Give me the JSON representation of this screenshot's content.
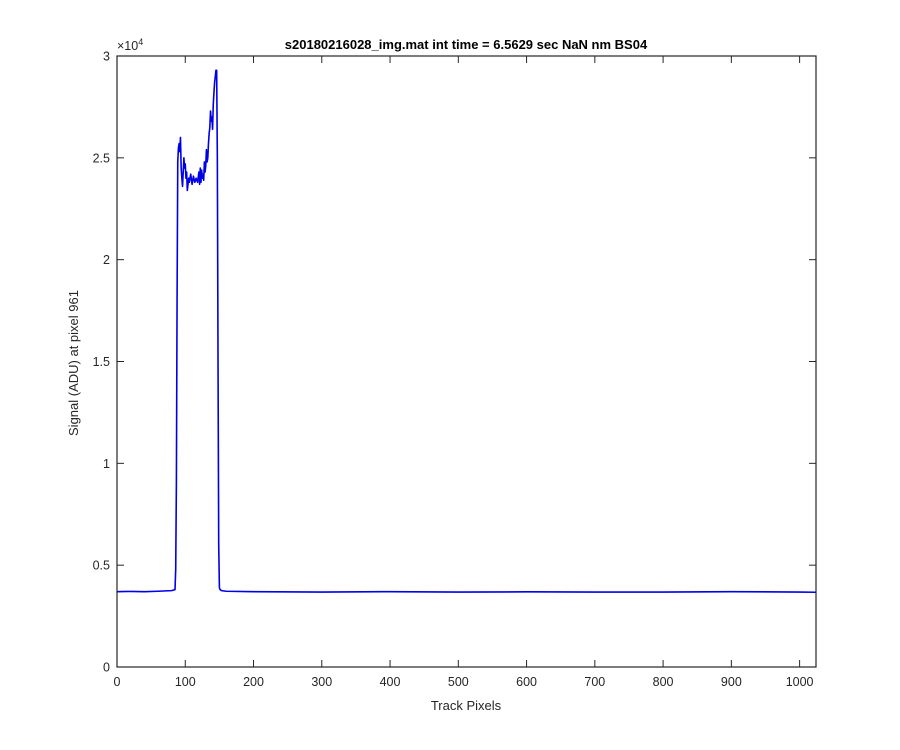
{
  "chart_data": {
    "type": "line",
    "title": "s20180216028_img.mat int time = 6.5629 sec  NaN nm BS04",
    "xlabel": "Track Pixels",
    "ylabel": "Signal (ADU) at pixel 961",
    "xlim": [
      0,
      1024
    ],
    "ylim": [
      0,
      30000
    ],
    "xticks": [
      0,
      100,
      200,
      300,
      400,
      500,
      600,
      700,
      800,
      900,
      1000
    ],
    "yticks": [
      0,
      5000,
      10000,
      15000,
      20000,
      25000,
      30000
    ],
    "yticklabels": [
      "0",
      "0.5",
      "1",
      "1.5",
      "2",
      "2.5",
      "3"
    ],
    "y_exponent_base": "×10",
    "y_exponent_power": "4",
    "grid": false,
    "series": [
      {
        "color": "#0000e6",
        "x": [
          0,
          20,
          40,
          60,
          80,
          85,
          86,
          87,
          88,
          89,
          90,
          91,
          92,
          93,
          94,
          95,
          96,
          97,
          98,
          99,
          100,
          101,
          102,
          103,
          104,
          105,
          106,
          108,
          110,
          112,
          114,
          116,
          118,
          120,
          121,
          122,
          123,
          124,
          125,
          126,
          127,
          128,
          129,
          130,
          131,
          132,
          133,
          134,
          135,
          136,
          137,
          138,
          139,
          140,
          141,
          142,
          143,
          144,
          145,
          146,
          147,
          148,
          149,
          150,
          151,
          152,
          153,
          160,
          200,
          300,
          400,
          500,
          600,
          700,
          800,
          900,
          1000,
          1024
        ],
        "y": [
          3700,
          3710,
          3700,
          3720,
          3750,
          3800,
          4800,
          9000,
          18000,
          24800,
          25500,
          25700,
          25300,
          26000,
          24500,
          24000,
          23600,
          24300,
          25000,
          24500,
          24700,
          24000,
          24300,
          23400,
          23700,
          24000,
          23800,
          24200,
          23700,
          24100,
          23800,
          24000,
          23800,
          24300,
          23700,
          24500,
          23800,
          24400,
          24000,
          24200,
          23900,
          24800,
          24300,
          24600,
          25400,
          24800,
          25000,
          25700,
          26200,
          26500,
          27300,
          26800,
          27000,
          26400,
          27600,
          28200,
          28700,
          29000,
          29300,
          29300,
          25000,
          15000,
          6000,
          3900,
          3800,
          3780,
          3750,
          3720,
          3700,
          3680,
          3700,
          3680,
          3690,
          3680,
          3680,
          3700,
          3680,
          3670
        ]
      }
    ]
  }
}
